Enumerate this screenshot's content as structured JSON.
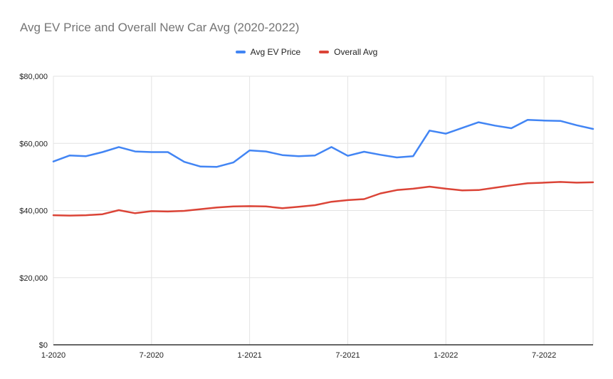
{
  "chart": {
    "title": "Avg EV Price and Overall New Car Avg (2020-2022)",
    "legend": [
      {
        "label": "Avg EV Price",
        "color": "#4285f4"
      },
      {
        "label": "Overall Avg",
        "color": "#db4437"
      }
    ]
  },
  "chart_data": {
    "type": "line",
    "title": "Avg EV Price and Overall New Car Avg (2020-2022)",
    "x": [
      "1-2020",
      "2-2020",
      "3-2020",
      "4-2020",
      "5-2020",
      "6-2020",
      "7-2020",
      "8-2020",
      "9-2020",
      "10-2020",
      "11-2020",
      "12-2020",
      "1-2021",
      "2-2021",
      "3-2021",
      "4-2021",
      "5-2021",
      "6-2021",
      "7-2021",
      "8-2021",
      "9-2021",
      "10-2021",
      "11-2021",
      "12-2021",
      "1-2022",
      "2-2022",
      "3-2022",
      "4-2022",
      "5-2022",
      "6-2022",
      "7-2022",
      "8-2022",
      "9-2022",
      "10-2022"
    ],
    "series": [
      {
        "name": "Avg EV Price",
        "color": "#4285f4",
        "values": [
          54600,
          56400,
          56200,
          57400,
          58900,
          57600,
          57400,
          57400,
          54500,
          53100,
          53000,
          54300,
          57900,
          57600,
          56500,
          56200,
          56400,
          58900,
          56300,
          57500,
          56600,
          55800,
          56200,
          63800,
          62900,
          64600,
          66300,
          65300,
          64500,
          67000,
          66800,
          66700,
          65400,
          64300
        ]
      },
      {
        "name": "Overall Avg",
        "color": "#db4437",
        "values": [
          38600,
          38500,
          38600,
          38900,
          40100,
          39200,
          39800,
          39700,
          39900,
          40400,
          40900,
          41200,
          41300,
          41200,
          40700,
          41100,
          41600,
          42600,
          43100,
          43400,
          45100,
          46100,
          46500,
          47100,
          46500,
          46000,
          46100,
          46800,
          47500,
          48100,
          48300,
          48500,
          48300,
          48400
        ]
      }
    ],
    "xlabel": "",
    "ylabel": "",
    "ylim": [
      0,
      80000
    ],
    "y_ticks": [
      0,
      20000,
      40000,
      60000,
      80000
    ],
    "y_tick_labels": [
      "$0",
      "$20,000",
      "$40,000",
      "$60,000",
      "$80,000"
    ],
    "x_tick_indices": [
      0,
      6,
      12,
      18,
      24,
      30
    ],
    "x_tick_labels": [
      "1-2020",
      "7-2020",
      "1-2021",
      "7-2021",
      "1-2022",
      "7-2022"
    ],
    "grid": true,
    "legend_position": "top",
    "colors": {
      "grid": "#e3e3e3",
      "axis": "#333333",
      "tick_text": "#222222",
      "title_text": "#757575",
      "background": "#ffffff"
    }
  }
}
